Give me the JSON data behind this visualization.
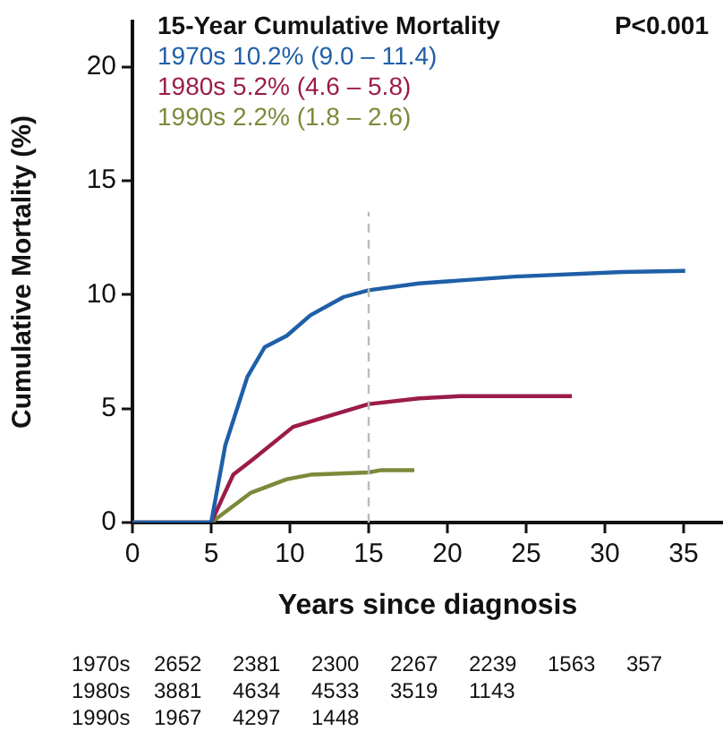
{
  "chart_data": {
    "type": "line",
    "xlabel": "Years since diagnosis",
    "ylabel": "Cumulative Mortality (%)",
    "legend_title": "15-Year Cumulative Mortality",
    "legend": "top left",
    "grid": false,
    "marker": "none",
    "line_style": "solid",
    "xlim": [
      0,
      37.5
    ],
    "xticks": [
      0,
      5,
      10,
      15,
      20,
      25,
      30,
      35
    ],
    "ylim": [
      0,
      22
    ],
    "yticks": [
      0,
      5,
      10,
      15,
      20
    ],
    "ref_lines": [
      {
        "axis": "x",
        "value": 15,
        "color": "#bbbbbb",
        "line_style": "dashed"
      }
    ],
    "series": [
      {
        "name": "1970s 10.2% (9.0 – 11.4)",
        "color": "#1f5fa8",
        "x": [
          0,
          5,
          5.9,
          7.3,
          8.4,
          9.8,
          11.3,
          13.4,
          15,
          18.2,
          24.3,
          31.1,
          35.1
        ],
        "values": [
          0,
          0,
          3.4,
          6.4,
          7.7,
          8.2,
          9.1,
          9.9,
          10.2,
          10.5,
          10.8,
          11,
          11.05
        ]
      },
      {
        "name": "1980s 5.2% (4.6 – 5.8)",
        "color": "#9b1b4a",
        "x": [
          0,
          5,
          6.4,
          7.7,
          10.2,
          12.1,
          15,
          18.2,
          20.8,
          27.9
        ],
        "values": [
          0,
          0,
          2.1,
          2.8,
          4.2,
          4.6,
          5.2,
          5.45,
          5.55,
          5.55
        ]
      },
      {
        "name": "1990s 2.2% (1.8 – 2.6)",
        "color": "#7a8a3a",
        "x": [
          0,
          5,
          7.5,
          9.8,
          11.3,
          15,
          15.8,
          17.9
        ],
        "values": [
          0,
          0,
          1.3,
          1.9,
          2.1,
          2.2,
          2.3,
          2.3
        ]
      }
    ],
    "annotations": [
      "P<0.001",
      "1970s 2652 2381 2300 2267 2239 1563 357",
      "1980s 3881 4634 4533 3519 1143",
      "1990s 1967 4297 1448"
    ]
  }
}
